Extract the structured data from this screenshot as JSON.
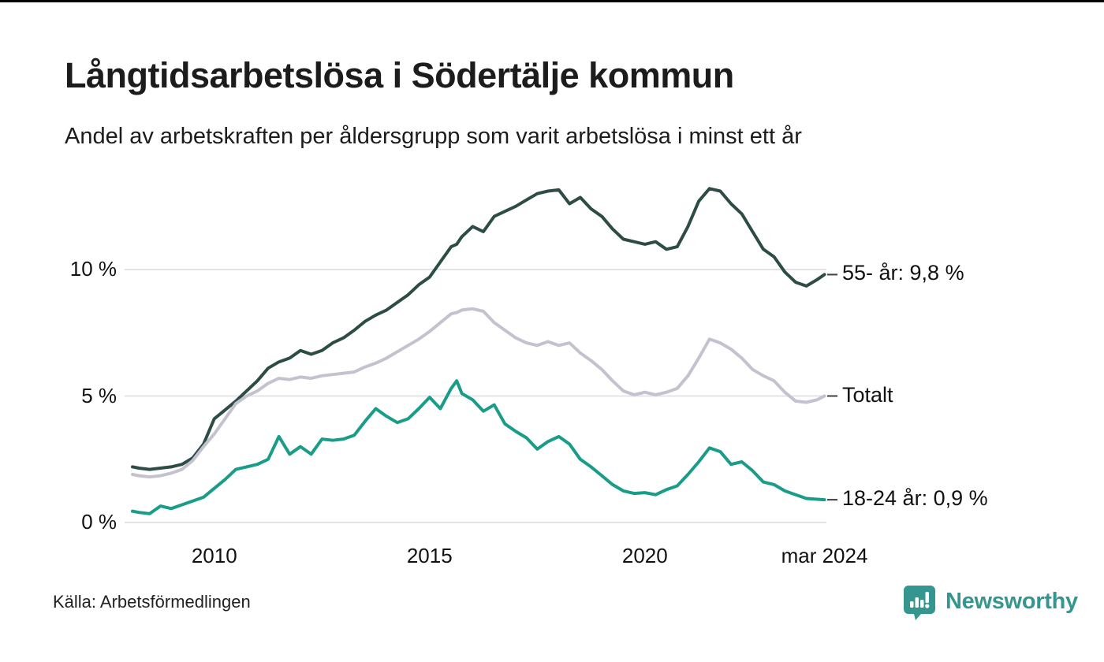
{
  "header": {
    "title": "Långtidsarbetslösa i Södertälje kommun",
    "subtitle": "Andel av arbetskraften per åldersgrupp som varit arbetslösa i minst ett år"
  },
  "footer": {
    "source": "Källa: Arbetsförmedlingen",
    "brand": "Newsworthy"
  },
  "colors": {
    "top_bar": "#000000",
    "grid": "#e4e4e8",
    "end_tick": "#3f3f3f",
    "brand": "#35968f",
    "text": "#1c1c1c"
  },
  "chart_data": {
    "type": "line",
    "title": "Långtidsarbetslösa i Södertälje kommun",
    "subtitle": "Andel av arbetskraften per åldersgrupp som varit arbetslösa i minst ett år",
    "unit": "%",
    "x_range": [
      2008.1,
      2024.17
    ],
    "y_range": [
      0,
      13.5
    ],
    "grid": true,
    "legend_position": "right-end-labels",
    "y_ticks": [
      {
        "label": "0 %",
        "value": 0
      },
      {
        "label": "5 %",
        "value": 5
      },
      {
        "label": "10 %",
        "value": 10
      }
    ],
    "x_ticks": [
      {
        "label": "2010",
        "x": 2010
      },
      {
        "label": "2015",
        "x": 2015
      },
      {
        "label": "2020",
        "x": 2020
      },
      {
        "label": "mar 2024",
        "x": 2024.17
      }
    ],
    "x": [
      2008.1,
      2008.25,
      2008.5,
      2008.75,
      2009,
      2009.25,
      2009.5,
      2009.75,
      2010,
      2010.25,
      2010.5,
      2010.75,
      2011,
      2011.25,
      2011.5,
      2011.75,
      2012,
      2012.25,
      2012.5,
      2012.75,
      2013,
      2013.25,
      2013.5,
      2013.75,
      2014,
      2014.25,
      2014.5,
      2014.75,
      2015,
      2015.25,
      2015.5,
      2015.63,
      2015.75,
      2016,
      2016.25,
      2016.5,
      2016.75,
      2017,
      2017.25,
      2017.5,
      2017.75,
      2018,
      2018.25,
      2018.5,
      2018.75,
      2019,
      2019.25,
      2019.5,
      2019.75,
      2020,
      2020.25,
      2020.5,
      2020.75,
      2021,
      2021.25,
      2021.5,
      2021.75,
      2022,
      2022.25,
      2022.5,
      2022.75,
      2023,
      2023.25,
      2023.5,
      2023.75,
      2024,
      2024.17
    ],
    "series": [
      {
        "name": "55- år",
        "end_label": "55- år: 9,8 %",
        "end_value_text": "9,8 %",
        "color": "#2c4c45",
        "values": [
          2.2,
          2.15,
          2.1,
          2.15,
          2.2,
          2.3,
          2.55,
          3.1,
          4.1,
          4.45,
          4.8,
          5.2,
          5.6,
          6.1,
          6.35,
          6.5,
          6.8,
          6.65,
          6.8,
          7.1,
          7.3,
          7.6,
          7.95,
          8.2,
          8.4,
          8.7,
          9.0,
          9.4,
          9.7,
          10.3,
          10.9,
          11.0,
          11.3,
          11.7,
          11.5,
          12.1,
          12.3,
          12.5,
          12.75,
          13.0,
          13.1,
          13.15,
          12.6,
          12.85,
          12.4,
          12.1,
          11.6,
          11.2,
          11.1,
          11.0,
          11.1,
          10.8,
          10.9,
          11.7,
          12.7,
          13.2,
          13.1,
          12.6,
          12.2,
          11.5,
          10.8,
          10.5,
          9.9,
          9.5,
          9.35,
          9.6,
          9.8
        ]
      },
      {
        "name": "Totalt",
        "end_label": "Totalt",
        "end_value_text": "",
        "color": "#c5c2d0",
        "values": [
          1.9,
          1.85,
          1.8,
          1.85,
          1.95,
          2.1,
          2.45,
          3.0,
          3.5,
          4.1,
          4.7,
          5.0,
          5.2,
          5.5,
          5.7,
          5.65,
          5.75,
          5.7,
          5.8,
          5.85,
          5.9,
          5.95,
          6.15,
          6.3,
          6.5,
          6.75,
          7.0,
          7.25,
          7.55,
          7.9,
          8.25,
          8.3,
          8.4,
          8.45,
          8.35,
          7.9,
          7.6,
          7.3,
          7.1,
          7.0,
          7.15,
          7.0,
          7.1,
          6.7,
          6.4,
          6.05,
          5.6,
          5.2,
          5.05,
          5.15,
          5.05,
          5.15,
          5.3,
          5.8,
          6.5,
          7.25,
          7.1,
          6.85,
          6.5,
          6.05,
          5.8,
          5.6,
          5.15,
          4.8,
          4.75,
          4.85,
          5.0
        ]
      },
      {
        "name": "18-24 år",
        "end_label": "18-24 år: 0,9 %",
        "end_value_text": "0,9 %",
        "color": "#199c88",
        "values": [
          0.45,
          0.4,
          0.35,
          0.65,
          0.55,
          0.7,
          0.85,
          1.0,
          1.35,
          1.7,
          2.1,
          2.2,
          2.3,
          2.5,
          3.4,
          2.7,
          3.0,
          2.7,
          3.3,
          3.25,
          3.3,
          3.45,
          4.0,
          4.5,
          4.2,
          3.95,
          4.1,
          4.5,
          4.95,
          4.5,
          5.3,
          5.6,
          5.1,
          4.85,
          4.4,
          4.65,
          3.9,
          3.6,
          3.35,
          2.9,
          3.2,
          3.4,
          3.1,
          2.5,
          2.2,
          1.85,
          1.5,
          1.25,
          1.15,
          1.18,
          1.1,
          1.3,
          1.45,
          1.9,
          2.4,
          2.95,
          2.8,
          2.3,
          2.4,
          2.05,
          1.6,
          1.5,
          1.25,
          1.1,
          0.95,
          0.92,
          0.9
        ]
      }
    ]
  }
}
